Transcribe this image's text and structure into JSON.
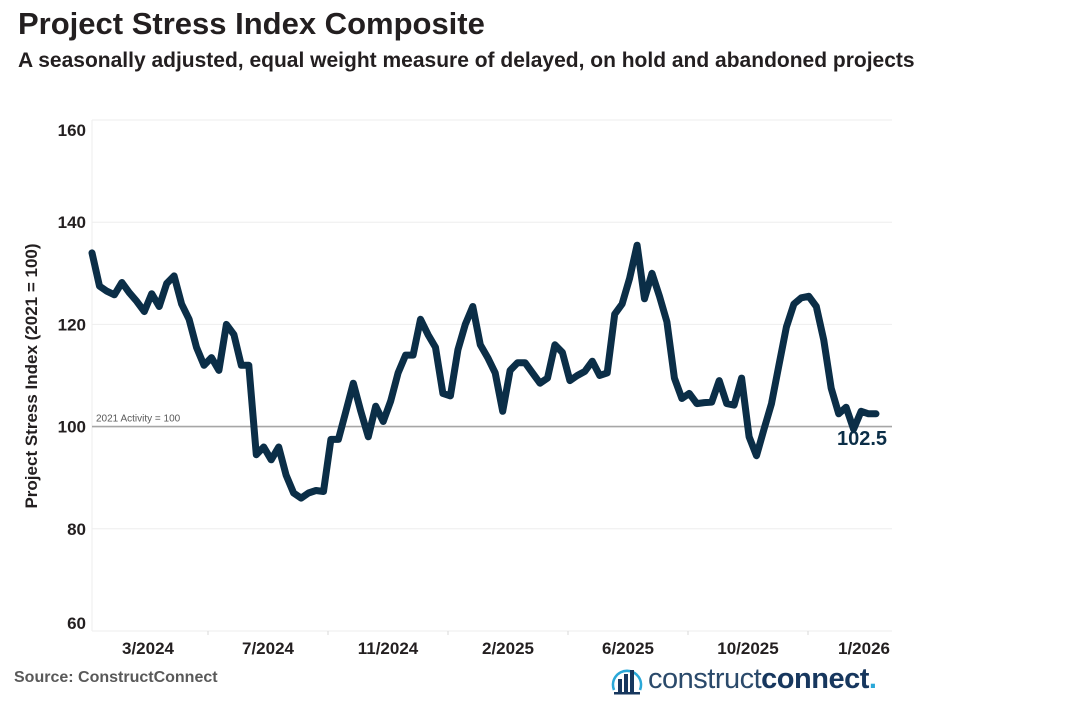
{
  "title": "Project Stress Index Composite",
  "subtitle": "A seasonally adjusted, equal weight measure of delayed, on hold and abandoned projects",
  "source": "Source: ConstructConnect",
  "logo": {
    "part1": "construct",
    "part2": "connect",
    "dot": "."
  },
  "colors": {
    "line": "#0b2e47",
    "reference": "#a6a6a6",
    "grid": "#eeeeee"
  },
  "chart_data": {
    "type": "line",
    "ylabel": "Project Stress Index (2021 = 100)",
    "ylim": [
      60,
      160
    ],
    "yticks": [
      60,
      80,
      100,
      120,
      140,
      160
    ],
    "xticks": [
      "3/2024",
      "7/2024",
      "11/2024",
      "2/2025",
      "6/2025",
      "10/2025",
      "1/2026"
    ],
    "reference_line": {
      "value": 100,
      "label": "2021 Activity = 100"
    },
    "last_value_label": "102.5",
    "grid": true,
    "series": [
      {
        "values": [
          134,
          127.5,
          126.5,
          125.8,
          128.2,
          126.2,
          124.5,
          122.5,
          126,
          123.5,
          128,
          129.5,
          124,
          121,
          115.5,
          112,
          113.5,
          111,
          120,
          118,
          112,
          112,
          94.5,
          96,
          93.5,
          96,
          90.5,
          87,
          86,
          87,
          87.5,
          87.3,
          97.5,
          97.5,
          103,
          108.5,
          103,
          98,
          104,
          101,
          105,
          110.5,
          114,
          114,
          121,
          118,
          115.5,
          106.5,
          106,
          115,
          120,
          123.5,
          116,
          113.5,
          110.5,
          103,
          111,
          112.5,
          112.5,
          110.5,
          108.5,
          109.5,
          116,
          114.5,
          109,
          110,
          110.8,
          112.8,
          110,
          110.5,
          122,
          124,
          129,
          135.5,
          125,
          130,
          125.5,
          120.5,
          109.5,
          105.5,
          106.5,
          104.5,
          104.7,
          104.8,
          109,
          104.5,
          104.2,
          109.5,
          98,
          94.3,
          99.5,
          104.5,
          112,
          119.5,
          124,
          125.2,
          125.5,
          123.5,
          117,
          107.5,
          102.5,
          103.8,
          99.5,
          103,
          102.5,
          102.5
        ]
      }
    ]
  }
}
